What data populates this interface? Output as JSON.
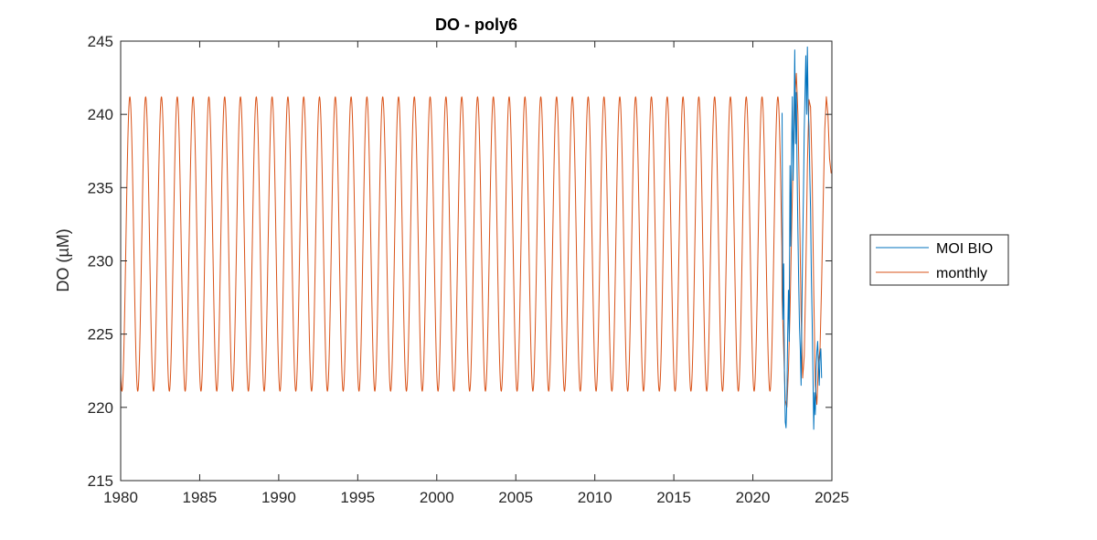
{
  "chart_data": {
    "type": "line",
    "title": "DO - poly6",
    "xlabel": "",
    "ylabel": "DO (µM)",
    "xlim": [
      1980,
      2025
    ],
    "ylim": [
      215,
      245
    ],
    "xticks": [
      1980,
      1985,
      1990,
      1995,
      2000,
      2005,
      2010,
      2015,
      2020,
      2025
    ],
    "yticks": [
      215,
      220,
      225,
      230,
      235,
      240,
      245
    ],
    "legend_position": "outside-right",
    "series": [
      {
        "name": "MOI BIO",
        "color": "#0072BD",
        "x": [
          2021.85,
          2021.9,
          2021.95,
          2022.0,
          2022.05,
          2022.1,
          2022.15,
          2022.2,
          2022.25,
          2022.3,
          2022.35,
          2022.4,
          2022.45,
          2022.5,
          2022.55,
          2022.6,
          2022.65,
          2022.7,
          2022.75,
          2022.8,
          2022.85,
          2022.9,
          2022.95,
          2023.0,
          2023.05,
          2023.1,
          2023.15,
          2023.2,
          2023.25,
          2023.3,
          2023.35,
          2023.4,
          2023.45,
          2023.5,
          2023.55,
          2023.6,
          2023.65,
          2023.7,
          2023.75,
          2023.8,
          2023.85,
          2023.9,
          2023.95,
          2024.0,
          2024.05,
          2024.1,
          2024.15,
          2024.2,
          2024.25,
          2024.3,
          2024.35
        ],
        "values": [
          240.1,
          226.0,
          229.8,
          222.5,
          219.0,
          218.6,
          220.5,
          224.8,
          228.0,
          224.5,
          236.5,
          231.0,
          237.8,
          241.2,
          235.5,
          239.2,
          244.4,
          238.0,
          241.5,
          236.0,
          232.0,
          228.5,
          225.5,
          224.0,
          221.5,
          226.5,
          231.0,
          234.5,
          238.8,
          241.5,
          244.0,
          240.0,
          244.6,
          240.3,
          239.2,
          236.0,
          233.5,
          229.0,
          226.0,
          222.5,
          218.5,
          221.0,
          219.5,
          222.5,
          223.8,
          224.5,
          223.0,
          221.5,
          223.5,
          224.0,
          222.0
        ]
      },
      {
        "name": "monthly",
        "color": "#D95319",
        "model": "sinusoid",
        "period_years": 1,
        "mean": 231.15,
        "amplitude": 10.05,
        "peak_phase": 0.58,
        "span": [
          1980,
          2021.85
        ],
        "then_x": [
          2021.85,
          2021.95,
          2022.05,
          2022.15,
          2022.25,
          2022.35,
          2022.45,
          2022.55,
          2022.65,
          2022.75,
          2022.85,
          2022.95,
          2023.05,
          2023.15,
          2023.25,
          2023.35,
          2023.45,
          2023.55,
          2023.65,
          2023.75,
          2023.85,
          2023.95,
          2024.05,
          2024.15,
          2024.25,
          2024.35,
          2024.45,
          2024.55,
          2024.65,
          2024.75,
          2024.85,
          2024.95,
          2025.0
        ],
        "then_values": [
          227.5,
          224.0,
          220.5,
          220.0,
          222.5,
          226.5,
          232.0,
          237.0,
          241.0,
          242.8,
          240.0,
          234.0,
          226.5,
          222.0,
          223.5,
          229.0,
          236.5,
          241.0,
          240.5,
          236.0,
          228.0,
          221.5,
          220.2,
          223.0,
          224.0,
          228.5,
          234.0,
          239.0,
          241.2,
          240.0,
          237.0,
          236.0,
          236.0
        ]
      }
    ]
  }
}
